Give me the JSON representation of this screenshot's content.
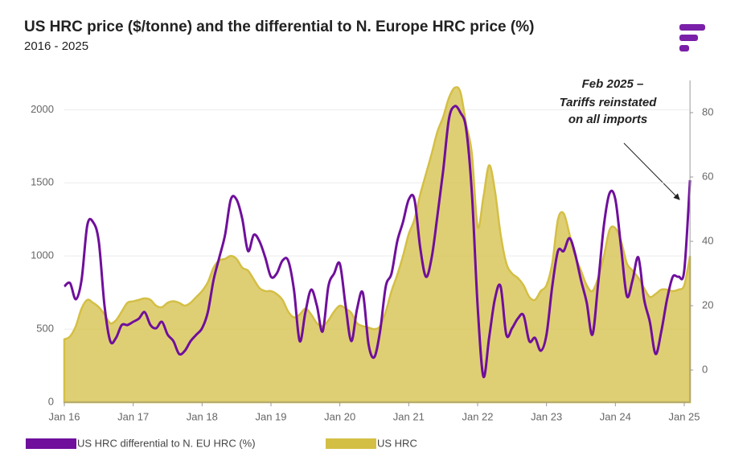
{
  "chart_data": {
    "type": "line",
    "title": "US HRC price ($/tonne) and the differential to N. Europe HRC price (%)",
    "subtitle": "2016 - 2025",
    "annotation": [
      "Feb 2025 –",
      "Tariffs reinstated",
      "on all imports"
    ],
    "categories": [
      "Jan 16",
      null,
      null,
      null,
      null,
      null,
      null,
      null,
      null,
      null,
      null,
      null,
      "Jan 17",
      null,
      null,
      null,
      null,
      null,
      null,
      null,
      null,
      null,
      null,
      null,
      "Jan 18",
      null,
      null,
      null,
      null,
      null,
      null,
      null,
      null,
      null,
      null,
      null,
      "Jan 19",
      null,
      null,
      null,
      null,
      null,
      null,
      null,
      null,
      null,
      null,
      null,
      "Jan 20",
      null,
      null,
      null,
      null,
      null,
      null,
      null,
      null,
      null,
      null,
      null,
      "Jan 21",
      null,
      null,
      null,
      null,
      null,
      null,
      null,
      null,
      null,
      null,
      null,
      "Jan 22",
      null,
      null,
      null,
      null,
      null,
      null,
      null,
      null,
      null,
      null,
      null,
      "Jan 23",
      null,
      null,
      null,
      null,
      null,
      null,
      null,
      null,
      null,
      null,
      null,
      "Jan 24",
      null,
      null,
      null,
      null,
      null,
      null,
      null,
      null,
      null,
      null,
      null,
      "Jan 25",
      null
    ],
    "series": [
      {
        "name": "US HRC differential to N. EU HRC (%)",
        "color": "#6f0f9c",
        "type": "line",
        "axis": "y2",
        "values": [
          26,
          27,
          22,
          28,
          45,
          46,
          40,
          20,
          9,
          10,
          14,
          14,
          15,
          16,
          18,
          14,
          13,
          15,
          11,
          9,
          5,
          6,
          9,
          11,
          13,
          18,
          28,
          35,
          42,
          53,
          53,
          47,
          37,
          42,
          40,
          35,
          29,
          30,
          34,
          34,
          25,
          9,
          18,
          25,
          20,
          12,
          26,
          30,
          33,
          20,
          9,
          19,
          24,
          8,
          4,
          12,
          26,
          30,
          40,
          46,
          53,
          53,
          38,
          29,
          35,
          48,
          62,
          78,
          82,
          80,
          75,
          55,
          20,
          -2,
          10,
          22,
          26,
          11,
          13,
          16,
          17,
          9,
          10,
          6,
          11,
          26,
          37,
          37,
          41,
          36,
          28,
          21,
          11,
          27,
          45,
          55,
          53,
          38,
          23,
          28,
          35,
          22,
          15,
          5,
          12,
          22,
          29,
          29,
          31,
          59
        ]
      },
      {
        "name": "US HRC",
        "color": "#d4bf45",
        "type": "area",
        "values": [
          430,
          450,
          520,
          640,
          700,
          680,
          650,
          600,
          540,
          560,
          620,
          680,
          690,
          700,
          710,
          700,
          660,
          650,
          680,
          690,
          680,
          660,
          680,
          720,
          760,
          820,
          920,
          970,
          980,
          1000,
          980,
          920,
          900,
          840,
          780,
          760,
          760,
          740,
          700,
          620,
          580,
          600,
          640,
          600,
          540,
          520,
          560,
          620,
          660,
          640,
          610,
          540,
          520,
          510,
          500,
          520,
          620,
          760,
          870,
          1000,
          1150,
          1250,
          1420,
          1560,
          1700,
          1850,
          1950,
          2080,
          2150,
          2120,
          1900,
          1700,
          1200,
          1400,
          1620,
          1450,
          1150,
          950,
          880,
          850,
          800,
          720,
          700,
          760,
          800,
          950,
          1250,
          1290,
          1150,
          1000,
          900,
          800,
          760,
          850,
          1000,
          1180,
          1190,
          1100,
          950,
          900,
          850,
          780,
          720,
          740,
          770,
          770,
          760,
          770,
          800,
          1000
        ]
      }
    ],
    "ylim": [
      0,
      2200
    ],
    "yticks": [
      0,
      500,
      1000,
      1500,
      2000
    ],
    "y2lim": [
      -10,
      90
    ],
    "y2ticks": [
      0,
      20,
      40,
      60,
      80
    ],
    "grid": true,
    "legend": "bottom"
  }
}
